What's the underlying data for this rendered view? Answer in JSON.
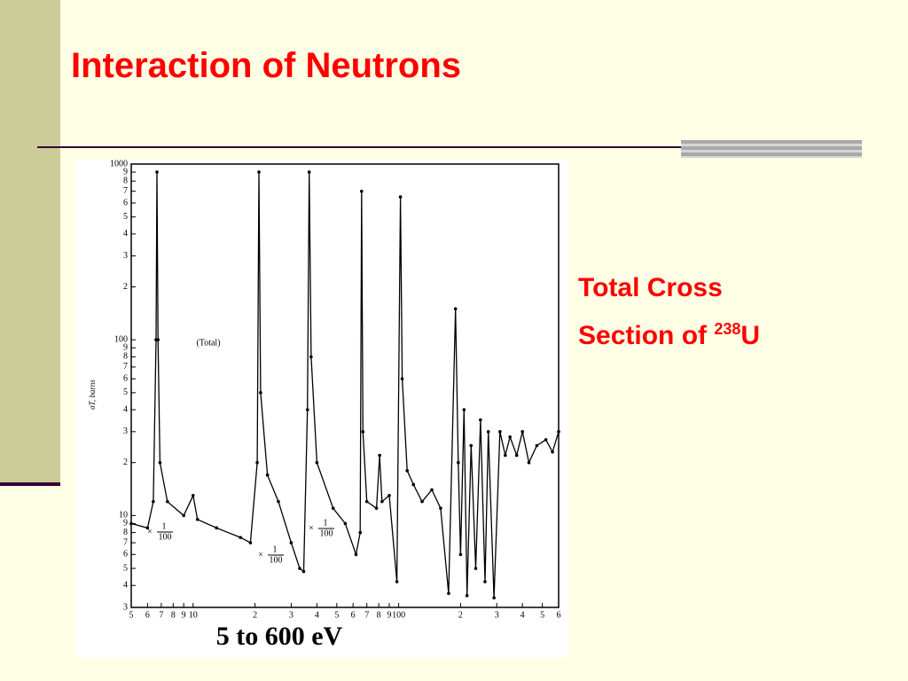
{
  "slide": {
    "title": "Interaction of Neutrons",
    "caption": {
      "line1": "Total Cross",
      "line2": "Section of ",
      "sup": "238",
      "element": "U"
    }
  },
  "chart_data": {
    "type": "line",
    "xlabel": "5 to 600 eV",
    "ylabel": "σT, barns",
    "annotations": [
      "(Total)"
    ],
    "scale_notes": [
      {
        "sign": "×",
        "num": "1",
        "den": "100"
      },
      {
        "sign": "×",
        "num": "1",
        "den": "100"
      },
      {
        "sign": "×",
        "num": "1",
        "den": "100"
      }
    ],
    "log_x": true,
    "log_y": true,
    "xlim": [
      5,
      600
    ],
    "ylim": [
      3,
      1000
    ],
    "xticks": [
      5,
      6,
      7,
      8,
      9,
      10,
      {
        "value": 20,
        "label": "2"
      },
      {
        "value": 30,
        "label": "3"
      },
      {
        "value": 40,
        "label": "4"
      },
      {
        "value": 50,
        "label": "5"
      },
      {
        "value": 60,
        "label": "6"
      },
      {
        "value": 70,
        "label": "7"
      },
      {
        "value": 80,
        "label": "8"
      },
      {
        "value": 90,
        "label": "9"
      },
      100,
      {
        "value": 200,
        "label": "2"
      },
      {
        "value": 300,
        "label": "3"
      },
      {
        "value": 400,
        "label": "4"
      },
      {
        "value": 500,
        "label": "5"
      },
      {
        "value": 600,
        "label": "6"
      }
    ],
    "yticks": [
      1000,
      {
        "value": 900,
        "label": "9"
      },
      {
        "value": 800,
        "label": "8"
      },
      {
        "value": 700,
        "label": "7"
      },
      {
        "value": 600,
        "label": "6"
      },
      {
        "value": 500,
        "label": "5"
      },
      {
        "value": 400,
        "label": "4"
      },
      {
        "value": 300,
        "label": "3"
      },
      {
        "value": 200,
        "label": "2"
      },
      100,
      {
        "value": 90,
        "label": "9"
      },
      {
        "value": 80,
        "label": "8"
      },
      {
        "value": 70,
        "label": "7"
      },
      {
        "value": 60,
        "label": "6"
      },
      {
        "value": 50,
        "label": "5"
      },
      {
        "value": 40,
        "label": "4"
      },
      {
        "value": 30,
        "label": "3"
      },
      {
        "value": 20,
        "label": "2"
      },
      10,
      9,
      8,
      7,
      6,
      5,
      4,
      3
    ],
    "series": [
      {
        "color": "#000000",
        "x": [
          5,
          6,
          6.4,
          6.6,
          6.67,
          6.75,
          6.9,
          7.5,
          9,
          10,
          10.5,
          13,
          17,
          19,
          20.5,
          20.9,
          21.3,
          23,
          26,
          30,
          33,
          34.5,
          36,
          36.7,
          37.5,
          40,
          48,
          55,
          62,
          65,
          66,
          67,
          70,
          78,
          80.8,
          83,
          90,
          98,
          102,
          104,
          110,
          118,
          130,
          145,
          160,
          175,
          189,
          195,
          200,
          208,
          215,
          225,
          237,
          250,
          263,
          273,
          291,
          311,
          330,
          348,
          375,
          400,
          430,
          470,
          520,
          560,
          600
        ],
        "values": [
          9,
          8.5,
          12,
          100,
          900,
          100,
          20,
          12,
          10,
          13,
          9.5,
          8.5,
          7.5,
          7,
          20,
          900,
          50,
          17,
          12,
          7,
          5,
          4.8,
          40,
          900,
          80,
          20,
          11,
          9,
          6,
          8,
          700,
          30,
          12,
          11,
          22,
          12,
          13,
          4.2,
          650,
          60,
          18,
          15,
          12,
          14,
          11,
          3.6,
          150,
          20,
          6,
          40,
          3.5,
          25,
          5,
          35,
          4.2,
          30,
          3.4,
          30,
          22,
          28,
          22,
          30,
          20,
          25,
          27,
          23,
          30
        ]
      }
    ]
  }
}
